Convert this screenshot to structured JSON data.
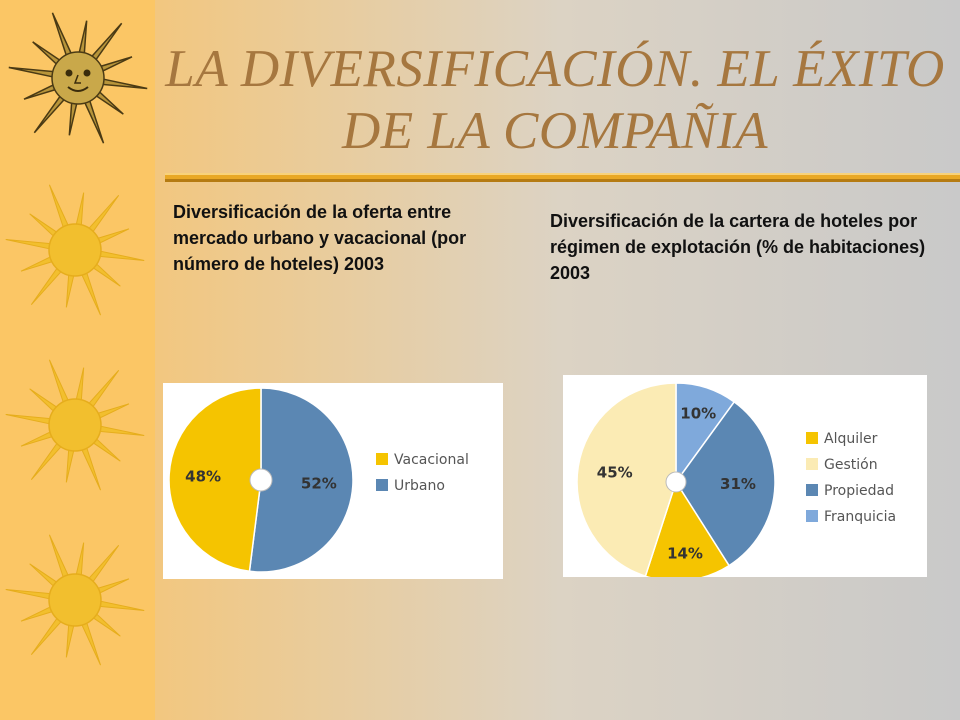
{
  "title": "LA DIVERSIFICACIÓN. EL ÉXITO DE LA COMPAÑIA",
  "sidebar": {
    "icons": [
      "sun-face-icon",
      "sun-icon",
      "sun-icon",
      "sun-icon"
    ]
  },
  "colors": {
    "title": "#a6773f",
    "sidebar": "#fbc665",
    "sun": "#f2bf2e",
    "alquiler": "#f5c400",
    "gestion": "#fbebb4",
    "propiedad": "#5b87b3",
    "franquicia": "#7fa9db",
    "vacacional": "#f5c400",
    "urbano": "#5b87b3"
  },
  "captions": {
    "left": "Diversificación de la oferta entre mercado urbano y vacacional (por número de hoteles) 2003",
    "right": "Diversificación de la cartera de hoteles por régimen de explotación (% de habitaciones) 2003"
  },
  "chart_data": [
    {
      "type": "pie",
      "title": "",
      "slices": [
        {
          "label": "Urbano",
          "value": 52,
          "display": "52%",
          "color": "#5b87b3"
        },
        {
          "label": "Vacacional",
          "value": 48,
          "display": "48%",
          "color": "#f5c400"
        }
      ],
      "legend": [
        "Vacacional",
        "Urbano"
      ],
      "legend_colors": [
        "#f5c400",
        "#5b87b3"
      ],
      "legend_position": "right"
    },
    {
      "type": "pie",
      "title": "",
      "slices": [
        {
          "label": "Franquicia",
          "value": 10,
          "display": "10%",
          "color": "#7fa9db"
        },
        {
          "label": "Propiedad",
          "value": 31,
          "display": "31%",
          "color": "#5b87b3"
        },
        {
          "label": "Alquiler",
          "value": 14,
          "display": "14%",
          "color": "#f5c400"
        },
        {
          "label": "Gestión",
          "value": 45,
          "display": "45%",
          "color": "#fbebb4"
        }
      ],
      "legend": [
        "Alquiler",
        "Gestión",
        "Propiedad",
        "Franquicia"
      ],
      "legend_colors": [
        "#f5c400",
        "#fbebb4",
        "#5b87b3",
        "#7fa9db"
      ],
      "legend_position": "right"
    }
  ]
}
